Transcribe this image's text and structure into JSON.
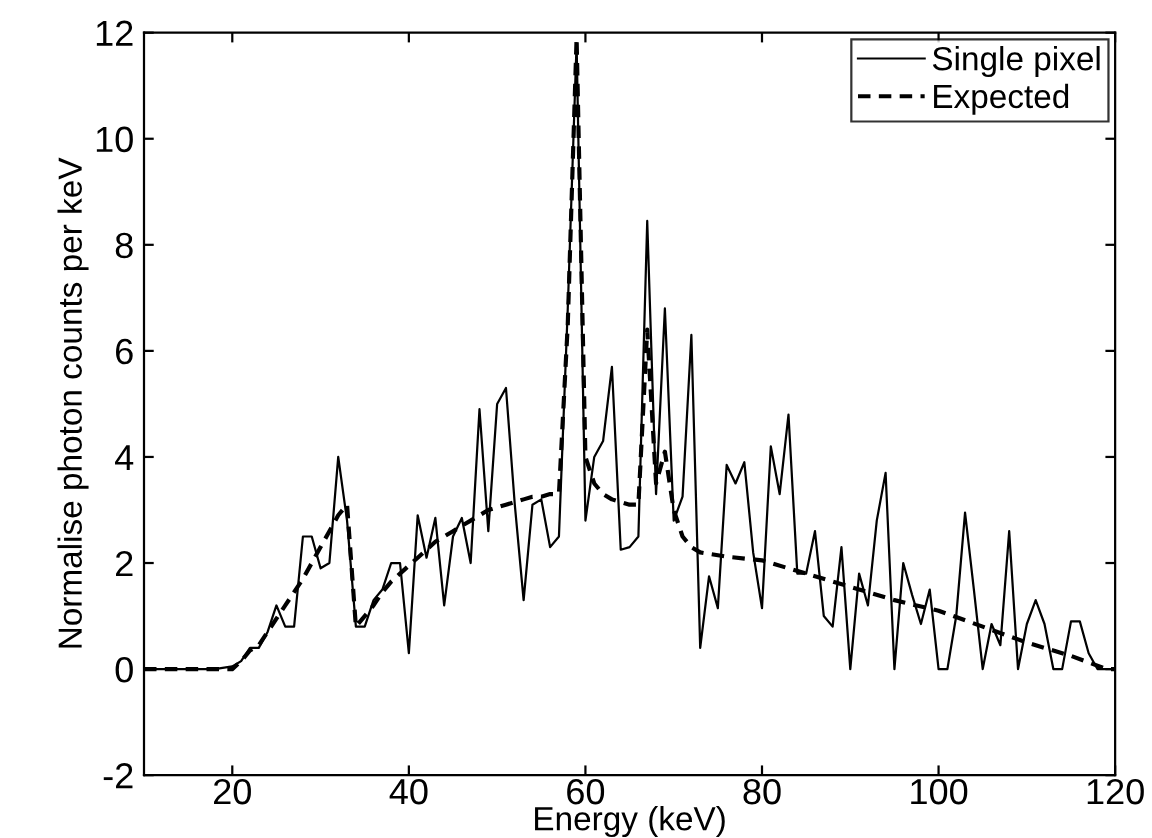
{
  "chart_data": {
    "type": "line",
    "xlabel": "Energy (keV)",
    "ylabel": "Normalise photon counts per keV",
    "xlim": [
      10,
      120
    ],
    "ylim": [
      -2,
      12
    ],
    "xticks": [
      20,
      40,
      60,
      80,
      100,
      120
    ],
    "yticks": [
      -2,
      0,
      2,
      4,
      6,
      8,
      10,
      12
    ],
    "grid": false,
    "legend": "top right",
    "series": [
      {
        "name": "Single pixel",
        "color": "#000000",
        "line_style": "solid",
        "x": [
          10,
          12,
          14,
          16,
          18,
          20,
          21,
          22,
          23,
          24,
          25,
          26,
          27,
          28,
          29,
          30,
          31,
          32,
          33,
          34,
          35,
          36,
          37,
          38,
          39,
          40,
          41,
          42,
          43,
          44,
          45,
          46,
          47,
          48,
          49,
          50,
          51,
          52,
          53,
          54,
          55,
          56,
          57,
          58,
          59,
          60,
          61,
          62,
          63,
          64,
          65,
          66,
          67,
          68,
          69,
          70,
          71,
          72,
          73,
          74,
          75,
          76,
          77,
          78,
          79,
          80,
          81,
          82,
          83,
          84,
          85,
          86,
          87,
          88,
          89,
          90,
          91,
          92,
          93,
          94,
          95,
          96,
          97,
          98,
          99,
          100,
          101,
          102,
          103,
          104,
          105,
          106,
          107,
          108,
          109,
          110,
          111,
          112,
          113,
          114,
          115,
          116,
          117,
          118,
          119,
          120
        ],
        "values": [
          0,
          0,
          0,
          0,
          0,
          0.05,
          0.15,
          0.4,
          0.4,
          0.7,
          1.2,
          0.8,
          0.8,
          2.5,
          2.5,
          1.9,
          2.0,
          4.0,
          2.8,
          0.8,
          0.8,
          1.3,
          1.5,
          2.0,
          2.0,
          0.3,
          2.9,
          2.1,
          2.85,
          1.2,
          2.5,
          2.85,
          2.0,
          4.9,
          2.6,
          5.0,
          5.3,
          3.1,
          1.3,
          3.1,
          3.2,
          2.3,
          2.5,
          6.8,
          11.8,
          2.8,
          4.0,
          4.3,
          5.7,
          2.25,
          2.3,
          2.5,
          8.45,
          3.3,
          6.8,
          2.8,
          3.25,
          6.3,
          0.4,
          1.75,
          1.15,
          3.85,
          3.5,
          3.9,
          2.2,
          1.15,
          4.2,
          3.3,
          4.8,
          1.8,
          1.8,
          2.6,
          1.0,
          0.8,
          2.3,
          0,
          1.8,
          1.2,
          2.8,
          3.7,
          0,
          2.0,
          1.4,
          0.85,
          1.5,
          0,
          0,
          1.0,
          2.95,
          1.5,
          0,
          0.85,
          0.45,
          2.6,
          0,
          0.85,
          1.3,
          0.85,
          0,
          0,
          0.9,
          0.9,
          0.3,
          0,
          0,
          0
        ]
      },
      {
        "name": "Expected",
        "color": "#000000",
        "line_style": "dashed",
        "x": [
          10,
          20,
          21,
          22,
          23,
          24,
          25,
          26,
          27,
          28,
          29,
          30,
          31,
          32,
          33,
          34,
          35,
          36,
          37,
          38,
          39,
          40,
          41,
          42,
          43,
          44,
          45,
          46,
          47,
          48,
          49,
          50,
          51,
          52,
          53,
          54,
          55,
          56,
          57,
          58,
          59,
          60,
          61,
          62,
          63,
          64,
          65,
          66,
          67,
          68,
          69,
          70,
          71,
          72,
          73,
          76,
          80,
          85,
          90,
          95,
          100,
          105,
          110,
          115,
          119,
          120
        ],
        "values": [
          0,
          0,
          0.15,
          0.35,
          0.45,
          0.7,
          0.95,
          1.2,
          1.45,
          1.7,
          2.0,
          2.3,
          2.6,
          2.9,
          3.1,
          0.8,
          1.0,
          1.2,
          1.45,
          1.65,
          1.8,
          1.95,
          2.1,
          2.25,
          2.4,
          2.5,
          2.6,
          2.7,
          2.8,
          2.9,
          3.0,
          3.05,
          3.1,
          3.15,
          3.2,
          3.25,
          3.25,
          3.3,
          3.3,
          6.5,
          11.9,
          4.0,
          3.5,
          3.3,
          3.2,
          3.15,
          3.1,
          3.1,
          6.4,
          3.5,
          4.1,
          3.0,
          2.5,
          2.3,
          2.2,
          2.12,
          2.05,
          1.8,
          1.55,
          1.3,
          1.1,
          0.8,
          0.5,
          0.25,
          0,
          0
        ]
      }
    ]
  }
}
